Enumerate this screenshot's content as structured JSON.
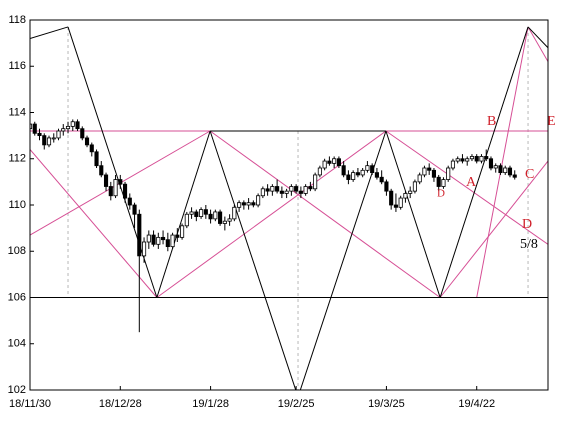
{
  "chart_data": {
    "type": "candlestick",
    "ylim": [
      102,
      118
    ],
    "yticks": [
      102,
      104,
      106,
      108,
      110,
      112,
      114,
      116,
      118
    ],
    "xlim": [
      0,
      109
    ],
    "xticks": [
      {
        "value": 0,
        "label": "18/11/30"
      },
      {
        "value": 19,
        "label": "18/12/28"
      },
      {
        "value": 38,
        "label": "19/1/28"
      },
      {
        "value": 56,
        "label": "19/2/25"
      },
      {
        "value": 75,
        "label": "19/3/25"
      },
      {
        "value": 94,
        "label": "19/4/22"
      }
    ],
    "up_color": "#ffffff",
    "down_color": "#000000",
    "line_color": "#d64f95",
    "frame_color": "#000000",
    "guide_color": "#b8b8b8",
    "ohlc": [
      [
        113.3,
        113.6,
        113.1,
        113.5
      ],
      [
        113.5,
        113.6,
        113.0,
        113.1
      ],
      [
        113.1,
        113.3,
        112.8,
        113.0
      ],
      [
        113.0,
        113.1,
        112.4,
        112.6
      ],
      [
        112.6,
        113.0,
        112.5,
        112.9
      ],
      [
        112.9,
        113.1,
        112.7,
        112.9
      ],
      [
        112.9,
        113.3,
        112.8,
        113.2
      ],
      [
        113.2,
        113.5,
        113.0,
        113.3
      ],
      [
        113.3,
        113.6,
        113.1,
        113.4
      ],
      [
        113.4,
        113.7,
        113.2,
        113.6
      ],
      [
        113.6,
        113.7,
        113.2,
        113.3
      ],
      [
        113.3,
        113.4,
        112.8,
        112.9
      ],
      [
        112.9,
        113.0,
        112.5,
        112.6
      ],
      [
        112.6,
        112.7,
        112.1,
        112.3
      ],
      [
        112.3,
        112.4,
        111.6,
        111.7
      ],
      [
        111.7,
        111.9,
        111.2,
        111.3
      ],
      [
        111.3,
        111.4,
        110.6,
        110.8
      ],
      [
        110.8,
        111.0,
        110.2,
        110.4
      ],
      [
        110.4,
        111.3,
        110.3,
        111.1
      ],
      [
        111.1,
        111.3,
        110.7,
        110.9
      ],
      [
        110.9,
        111.0,
        110.1,
        110.3
      ],
      [
        110.3,
        110.5,
        109.8,
        110.0
      ],
      [
        110.0,
        110.1,
        109.0,
        109.6
      ],
      [
        109.6,
        109.8,
        104.5,
        107.8
      ],
      [
        107.8,
        108.6,
        107.5,
        108.4
      ],
      [
        108.4,
        108.9,
        108.1,
        108.7
      ],
      [
        108.7,
        108.9,
        108.2,
        108.3
      ],
      [
        108.3,
        108.8,
        108.1,
        108.6
      ],
      [
        108.6,
        108.9,
        108.3,
        108.5
      ],
      [
        108.5,
        108.8,
        108.0,
        108.2
      ],
      [
        108.2,
        108.8,
        108.1,
        108.7
      ],
      [
        108.7,
        109.0,
        108.4,
        108.6
      ],
      [
        108.6,
        109.2,
        108.5,
        109.1
      ],
      [
        109.1,
        109.7,
        109.0,
        109.6
      ],
      [
        109.6,
        109.9,
        109.4,
        109.7
      ],
      [
        109.7,
        109.8,
        109.3,
        109.5
      ],
      [
        109.5,
        109.9,
        109.4,
        109.8
      ],
      [
        109.8,
        110.0,
        109.4,
        109.6
      ],
      [
        109.6,
        109.8,
        109.2,
        109.4
      ],
      [
        109.4,
        109.8,
        109.3,
        109.7
      ],
      [
        109.7,
        109.8,
        109.1,
        109.2
      ],
      [
        109.2,
        109.5,
        108.9,
        109.3
      ],
      [
        109.3,
        109.6,
        109.1,
        109.4
      ],
      [
        109.4,
        110.0,
        109.3,
        109.9
      ],
      [
        109.9,
        110.2,
        109.7,
        110.1
      ],
      [
        110.1,
        110.2,
        109.8,
        110.0
      ],
      [
        110.0,
        110.3,
        109.8,
        110.1
      ],
      [
        110.1,
        110.2,
        109.9,
        110.0
      ],
      [
        110.0,
        110.5,
        109.9,
        110.4
      ],
      [
        110.4,
        110.8,
        110.3,
        110.7
      ],
      [
        110.7,
        110.9,
        110.4,
        110.6
      ],
      [
        110.6,
        110.9,
        110.4,
        110.8
      ],
      [
        110.8,
        111.1,
        110.5,
        110.6
      ],
      [
        110.6,
        110.8,
        110.3,
        110.5
      ],
      [
        110.5,
        110.7,
        110.3,
        110.6
      ],
      [
        110.6,
        110.9,
        110.4,
        110.8
      ],
      [
        110.8,
        110.9,
        110.5,
        110.6
      ],
      [
        110.6,
        110.8,
        110.3,
        110.5
      ],
      [
        110.5,
        110.9,
        110.4,
        110.8
      ],
      [
        110.8,
        111.0,
        110.6,
        110.7
      ],
      [
        110.7,
        111.4,
        110.6,
        111.3
      ],
      [
        111.3,
        111.7,
        111.2,
        111.6
      ],
      [
        111.6,
        112.0,
        111.5,
        111.9
      ],
      [
        111.9,
        112.1,
        111.7,
        111.8
      ],
      [
        111.8,
        112.1,
        111.6,
        112.0
      ],
      [
        112.0,
        112.1,
        111.6,
        111.7
      ],
      [
        111.7,
        111.9,
        111.2,
        111.3
      ],
      [
        111.3,
        111.5,
        110.9,
        111.1
      ],
      [
        111.1,
        111.5,
        111.0,
        111.4
      ],
      [
        111.4,
        111.6,
        111.2,
        111.3
      ],
      [
        111.3,
        111.6,
        111.2,
        111.5
      ],
      [
        111.5,
        111.9,
        111.4,
        111.7
      ],
      [
        111.7,
        111.8,
        111.3,
        111.4
      ],
      [
        111.4,
        111.6,
        111.1,
        111.2
      ],
      [
        111.2,
        111.5,
        110.9,
        111.0
      ],
      [
        111.0,
        111.1,
        110.4,
        110.6
      ],
      [
        110.6,
        110.7,
        109.8,
        110.0
      ],
      [
        110.0,
        110.5,
        109.7,
        109.9
      ],
      [
        109.9,
        110.4,
        109.8,
        110.3
      ],
      [
        110.3,
        110.6,
        110.1,
        110.5
      ],
      [
        110.5,
        110.8,
        110.3,
        110.6
      ],
      [
        110.6,
        111.1,
        110.5,
        111.0
      ],
      [
        111.0,
        111.4,
        110.9,
        111.3
      ],
      [
        111.3,
        111.7,
        111.2,
        111.6
      ],
      [
        111.6,
        111.8,
        111.3,
        111.5
      ],
      [
        111.5,
        111.6,
        111.0,
        111.2
      ],
      [
        111.2,
        111.3,
        110.6,
        110.8
      ],
      [
        110.8,
        111.2,
        110.7,
        111.1
      ],
      [
        111.1,
        111.7,
        111.0,
        111.6
      ],
      [
        111.6,
        112.0,
        111.5,
        111.9
      ],
      [
        111.9,
        112.1,
        111.8,
        112.0
      ],
      [
        112.0,
        112.2,
        111.8,
        111.9
      ],
      [
        111.9,
        112.1,
        111.7,
        112.0
      ],
      [
        112.0,
        112.2,
        111.9,
        112.1
      ],
      [
        112.1,
        112.2,
        111.8,
        111.9
      ],
      [
        111.9,
        112.2,
        111.8,
        112.1
      ],
      [
        112.1,
        112.4,
        111.9,
        112.0
      ],
      [
        112.0,
        112.1,
        111.5,
        111.6
      ],
      [
        111.6,
        111.8,
        111.4,
        111.7
      ],
      [
        111.7,
        111.8,
        111.3,
        111.4
      ],
      [
        111.4,
        111.7,
        111.3,
        111.6
      ],
      [
        111.6,
        111.7,
        111.2,
        111.3
      ],
      [
        111.3,
        111.5,
        111.1,
        111.2
      ]
    ],
    "black_lines": [
      [
        0,
        117.2,
        8,
        117.7
      ],
      [
        8,
        117.7,
        26.7,
        106
      ],
      [
        26.7,
        106,
        37.9,
        113.2
      ],
      [
        37.9,
        113.2,
        56.4,
        101.7
      ],
      [
        56.4,
        101.7,
        74.9,
        113.2
      ],
      [
        74.9,
        113.2,
        86.3,
        106
      ],
      [
        86.3,
        106,
        104.8,
        117.7
      ],
      [
        104.8,
        117.7,
        109,
        116.8
      ],
      [
        37.9,
        113.2,
        74.9,
        113.2
      ],
      [
        0,
        106,
        109,
        106
      ]
    ],
    "pink_lines": [
      [
        0,
        113.2,
        109,
        113.2
      ],
      [
        0,
        108.7,
        37.9,
        113.2
      ],
      [
        0,
        112.4,
        26.7,
        106
      ],
      [
        26.7,
        106,
        74.9,
        113.2
      ],
      [
        37.9,
        113.2,
        86.3,
        106
      ],
      [
        74.9,
        113.2,
        109,
        108.3
      ],
      [
        86.3,
        106,
        109,
        111.9
      ],
      [
        104.8,
        117.7,
        94,
        106
      ],
      [
        104.8,
        117.7,
        109,
        116.2
      ],
      [
        26.7,
        106,
        86.3,
        106
      ]
    ],
    "guide_lines": [
      [
        8,
        117.7,
        8,
        106
      ],
      [
        56.4,
        113.2,
        56.4,
        101.7
      ],
      [
        104.8,
        117.7,
        104.8,
        106
      ]
    ],
    "annotations": [
      "B",
      "E",
      "A",
      "C",
      "D",
      "D",
      "5/8"
    ]
  }
}
